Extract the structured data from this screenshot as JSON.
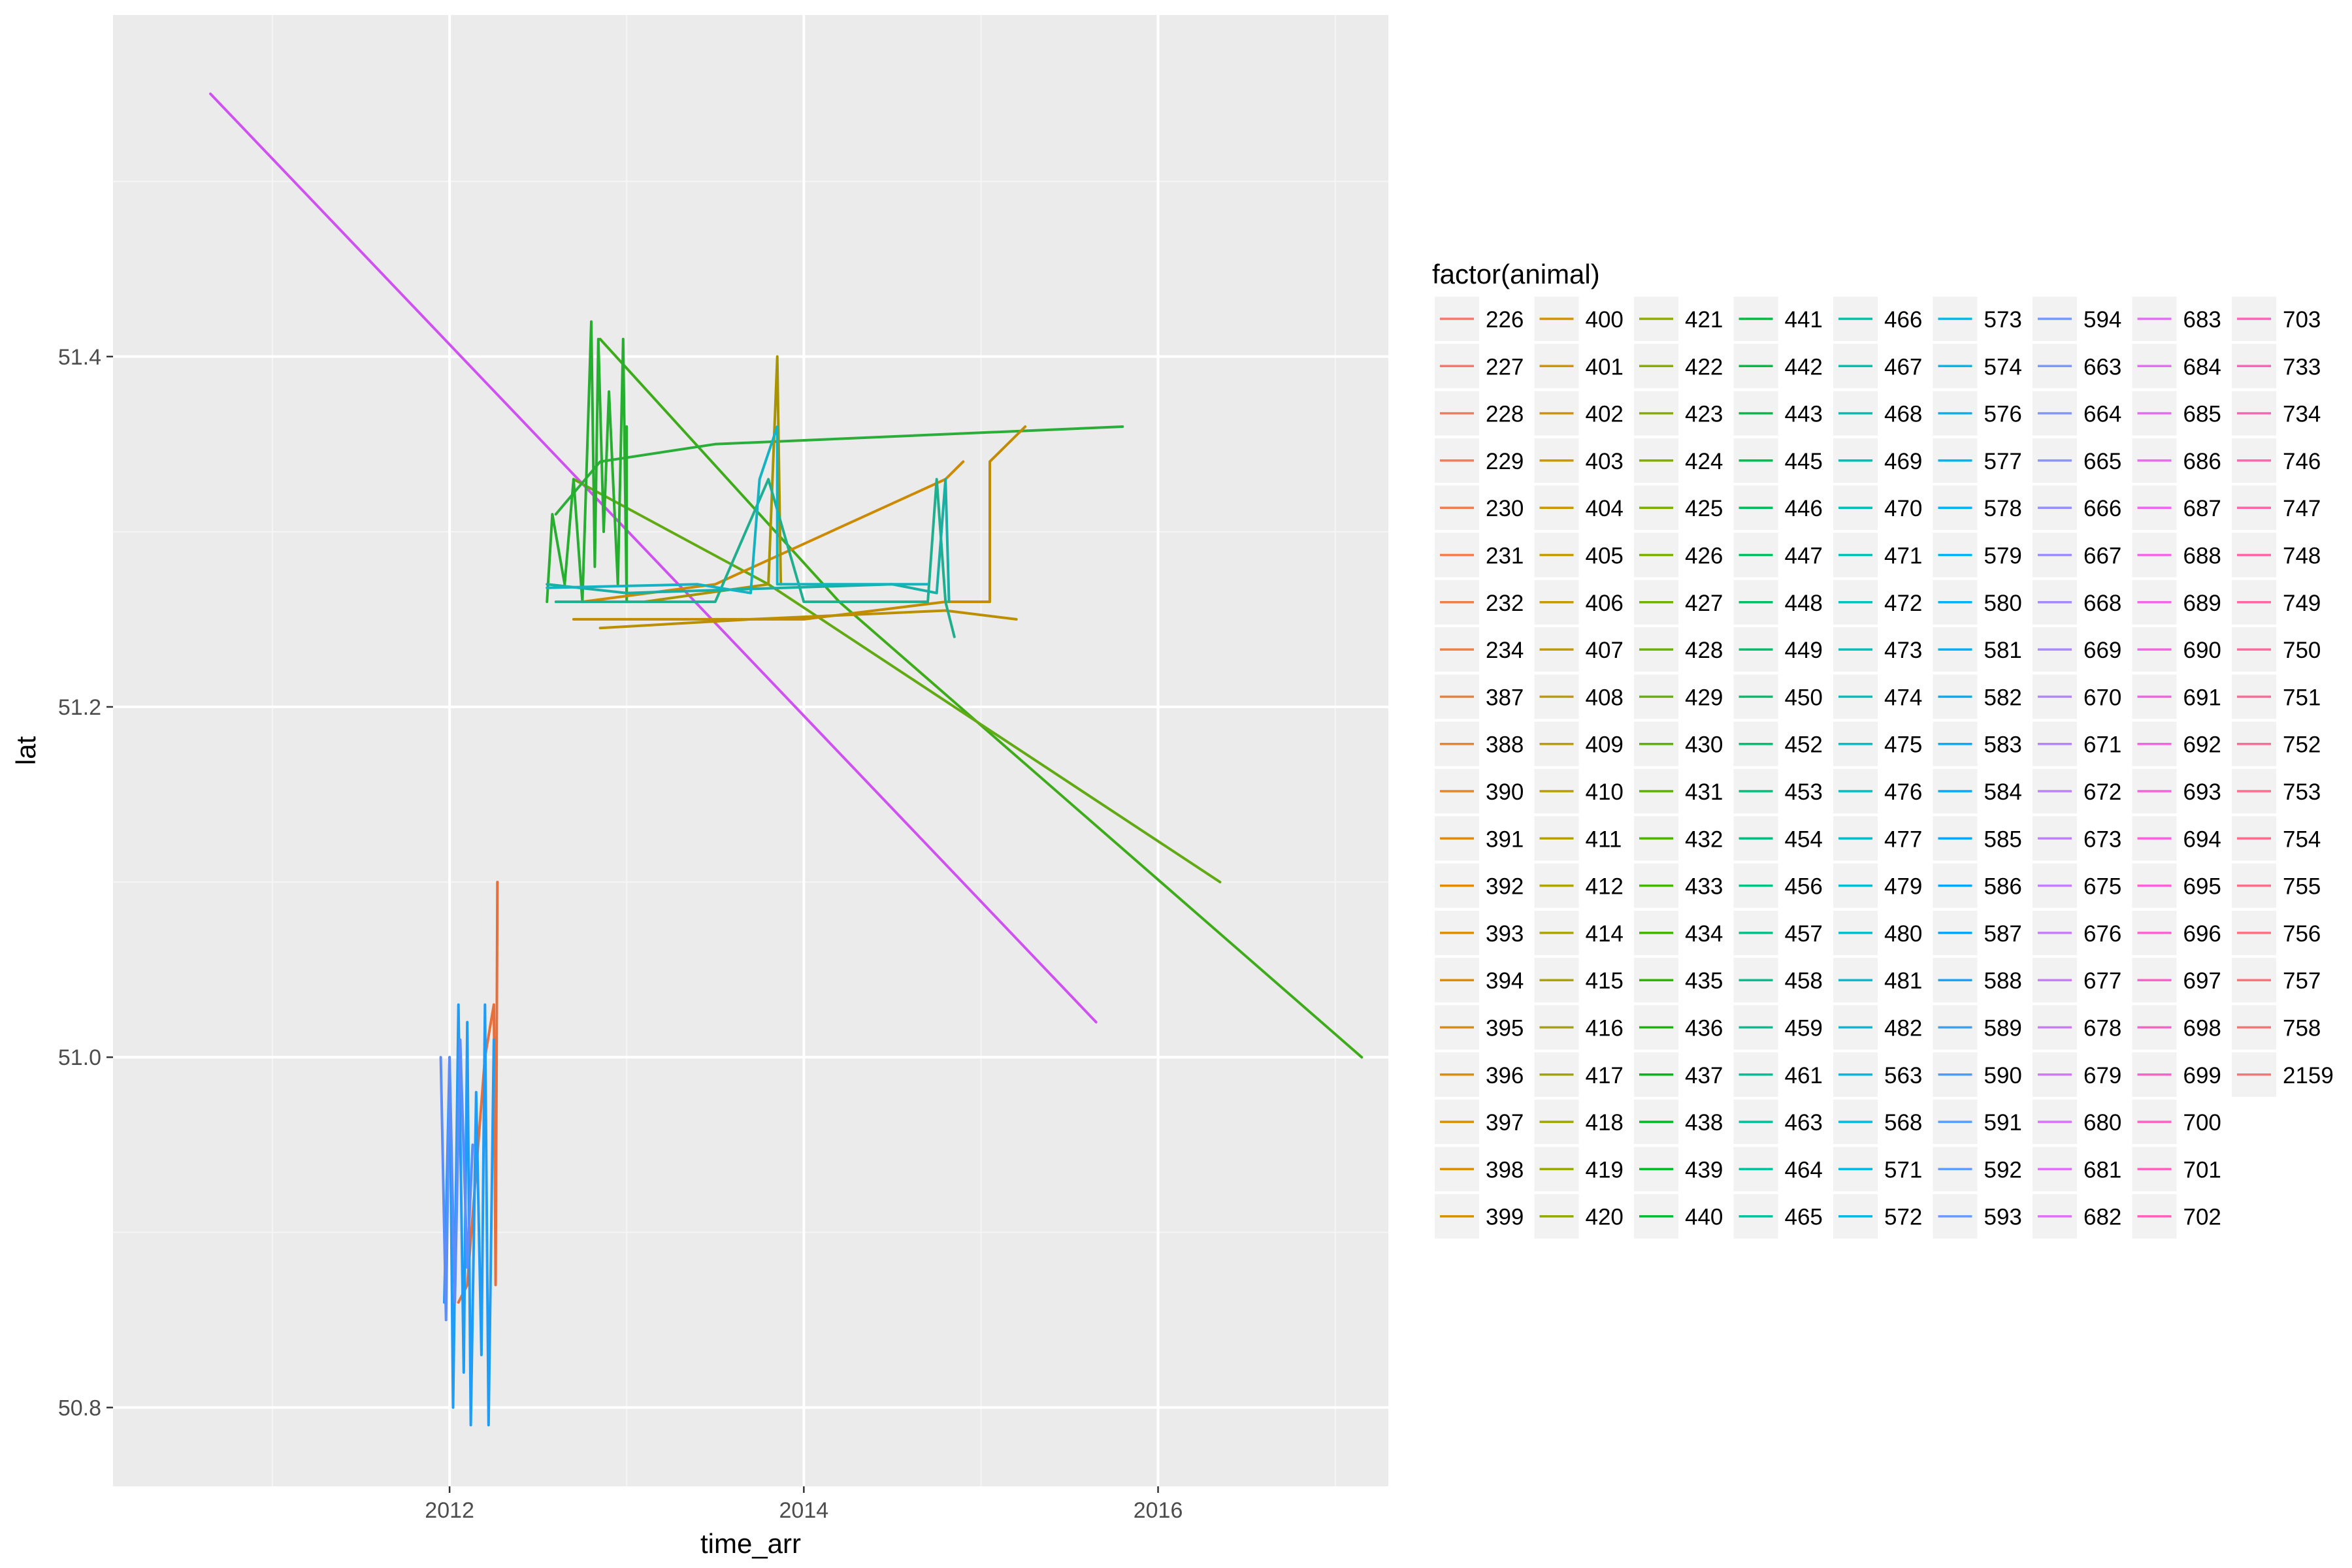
{
  "chart_data": {
    "type": "line",
    "title": "",
    "xlabel": "time_arr",
    "ylabel": "lat",
    "xlim": [
      2010.1,
      2017.3
    ],
    "ylim": [
      50.755,
      51.595
    ],
    "x_ticks": [
      2012,
      2014,
      2016
    ],
    "x_tick_labels": [
      "2012",
      "2014",
      "2016"
    ],
    "y_ticks": [
      50.8,
      51.0,
      51.2,
      51.4
    ],
    "y_tick_labels": [
      "50.8",
      "51.0",
      "51.2",
      "51.4"
    ],
    "grid": true,
    "legend": {
      "title": "factor(animal)",
      "placement": "right",
      "entries": [
        "226",
        "227",
        "228",
        "229",
        "230",
        "231",
        "232",
        "234",
        "387",
        "388",
        "390",
        "391",
        "392",
        "393",
        "394",
        "395",
        "396",
        "397",
        "398",
        "399",
        "400",
        "401",
        "402",
        "403",
        "404",
        "405",
        "406",
        "407",
        "408",
        "409",
        "410",
        "411",
        "412",
        "414",
        "415",
        "416",
        "417",
        "418",
        "419",
        "420",
        "421",
        "422",
        "423",
        "424",
        "425",
        "426",
        "427",
        "428",
        "429",
        "430",
        "431",
        "432",
        "433",
        "434",
        "435",
        "436",
        "437",
        "438",
        "439",
        "440",
        "441",
        "442",
        "443",
        "445",
        "446",
        "447",
        "448",
        "449",
        "450",
        "452",
        "453",
        "454",
        "456",
        "457",
        "458",
        "459",
        "461",
        "463",
        "464",
        "465",
        "466",
        "467",
        "468",
        "469",
        "470",
        "471",
        "472",
        "473",
        "474",
        "475",
        "476",
        "477",
        "479",
        "480",
        "481",
        "482",
        "563",
        "568",
        "571",
        "572",
        "573",
        "574",
        "576",
        "577",
        "578",
        "579",
        "580",
        "581",
        "582",
        "583",
        "584",
        "585",
        "586",
        "587",
        "588",
        "589",
        "590",
        "591",
        "592",
        "593",
        "594",
        "663",
        "664",
        "665",
        "666",
        "667",
        "668",
        "669",
        "670",
        "671",
        "672",
        "673",
        "675",
        "676",
        "677",
        "678",
        "679",
        "680",
        "681",
        "682",
        "683",
        "684",
        "685",
        "686",
        "687",
        "688",
        "689",
        "690",
        "691",
        "692",
        "693",
        "694",
        "695",
        "696",
        "697",
        "698",
        "699",
        "700",
        "701",
        "702",
        "703",
        "733",
        "734",
        "746",
        "747",
        "748",
        "749",
        "750",
        "751",
        "752",
        "753",
        "754",
        "755",
        "756",
        "757",
        "758",
        "2159"
      ]
    },
    "series": [
      {
        "name": "682",
        "color": "#CF51F2",
        "points": [
          [
            2010.65,
            51.55
          ],
          [
            2015.65,
            51.02
          ]
        ]
      },
      {
        "name": "433",
        "color": "#3EAC1A",
        "points": [
          [
            2012.85,
            51.41
          ],
          [
            2014.2,
            51.26
          ],
          [
            2017.15,
            51.0
          ]
        ]
      },
      {
        "name": "426",
        "color": "#62AA13",
        "points": [
          [
            2012.7,
            51.33
          ],
          [
            2013.8,
            51.27
          ],
          [
            2016.35,
            51.1
          ]
        ]
      },
      {
        "name": "438",
        "color": "#2BAE39",
        "points": [
          [
            2012.6,
            51.31
          ],
          [
            2012.85,
            51.34
          ],
          [
            2013.5,
            51.35
          ],
          [
            2015.8,
            51.36
          ]
        ]
      },
      {
        "name": "437",
        "color": "#26AE2E",
        "points": [
          [
            2012.55,
            51.26
          ],
          [
            2012.58,
            51.31
          ],
          [
            2012.65,
            51.27
          ],
          [
            2012.7,
            51.33
          ],
          [
            2012.75,
            51.26
          ],
          [
            2012.8,
            51.42
          ],
          [
            2012.82,
            51.28
          ],
          [
            2012.84,
            51.41
          ],
          [
            2012.87,
            51.3
          ],
          [
            2012.9,
            51.38
          ],
          [
            2012.95,
            51.27
          ],
          [
            2012.98,
            51.41
          ],
          [
            2013.0,
            51.26
          ],
          [
            2013.0,
            51.36
          ]
        ]
      },
      {
        "name": "403",
        "color": "#C28B00",
        "points": [
          [
            2012.7,
            51.25
          ],
          [
            2014.0,
            51.25
          ],
          [
            2014.8,
            51.26
          ],
          [
            2015.05,
            51.26
          ],
          [
            2015.05,
            51.34
          ],
          [
            2015.25,
            51.36
          ]
        ]
      },
      {
        "name": "407",
        "color": "#CB8A00",
        "points": [
          [
            2012.75,
            51.26
          ],
          [
            2013.5,
            51.27
          ],
          [
            2014.8,
            51.33
          ],
          [
            2014.9,
            51.34
          ]
        ]
      },
      {
        "name": "409",
        "color": "#BB8F00",
        "points": [
          [
            2012.85,
            51.245
          ],
          [
            2013.7,
            51.25
          ],
          [
            2014.8,
            51.255
          ],
          [
            2015.2,
            51.25
          ]
        ]
      },
      {
        "name": "411",
        "color": "#A79400",
        "points": [
          [
            2013.1,
            51.26
          ],
          [
            2013.8,
            51.27
          ],
          [
            2013.85,
            51.4
          ],
          [
            2013.87,
            51.27
          ]
        ]
      },
      {
        "name": "470",
        "color": "#1FAF8E",
        "points": [
          [
            2012.6,
            51.26
          ],
          [
            2013.5,
            51.26
          ],
          [
            2013.8,
            51.33
          ],
          [
            2014.0,
            51.26
          ],
          [
            2014.7,
            51.26
          ],
          [
            2014.75,
            51.33
          ],
          [
            2014.8,
            51.26
          ],
          [
            2014.85,
            51.24
          ]
        ]
      },
      {
        "name": "476",
        "color": "#18B0A5",
        "points": [
          [
            2012.55,
            51.27
          ],
          [
            2013.0,
            51.265
          ],
          [
            2014.5,
            51.27
          ],
          [
            2014.75,
            51.265
          ],
          [
            2014.8,
            51.33
          ],
          [
            2014.82,
            51.26
          ]
        ]
      },
      {
        "name": "481",
        "color": "#13B3C3",
        "points": [
          [
            2012.55,
            51.268
          ],
          [
            2013.4,
            51.27
          ],
          [
            2013.7,
            51.265
          ],
          [
            2013.75,
            51.33
          ],
          [
            2013.85,
            51.36
          ],
          [
            2013.85,
            51.27
          ],
          [
            2014.7,
            51.27
          ]
        ]
      },
      {
        "name": "234",
        "color": "#E76F3B",
        "points": [
          [
            2012.05,
            50.86
          ],
          [
            2012.1,
            50.87
          ],
          [
            2012.2,
            51.0
          ],
          [
            2012.25,
            51.03
          ],
          [
            2012.26,
            50.87
          ],
          [
            2012.27,
            51.1
          ]
        ]
      },
      {
        "name": "583",
        "color": "#1E9CF6",
        "points": [
          [
            2011.97,
            50.86
          ],
          [
            2012.0,
            51.0
          ],
          [
            2012.02,
            50.8
          ],
          [
            2012.05,
            51.03
          ],
          [
            2012.08,
            50.82
          ],
          [
            2012.1,
            51.02
          ],
          [
            2012.12,
            50.79
          ],
          [
            2012.15,
            50.98
          ],
          [
            2012.18,
            50.83
          ],
          [
            2012.2,
            51.03
          ],
          [
            2012.22,
            50.79
          ],
          [
            2012.25,
            51.01
          ]
        ]
      },
      {
        "name": "593",
        "color": "#5D8DF8",
        "points": [
          [
            2011.95,
            51.0
          ],
          [
            2011.98,
            50.85
          ],
          [
            2012.0,
            51.0
          ],
          [
            2012.03,
            50.86
          ],
          [
            2012.06,
            51.01
          ],
          [
            2012.1,
            50.88
          ],
          [
            2012.13,
            50.95
          ]
        ]
      }
    ]
  }
}
